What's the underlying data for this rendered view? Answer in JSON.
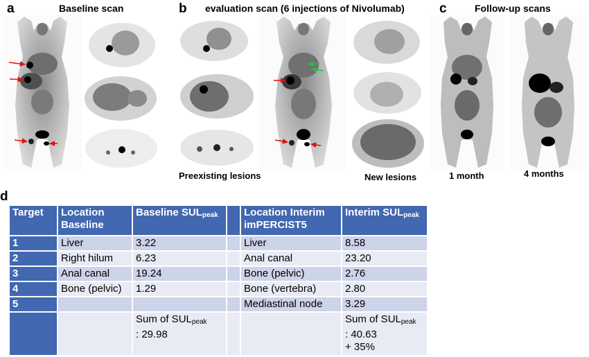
{
  "panels": {
    "a": {
      "letter": "a",
      "title": "Baseline scan"
    },
    "b": {
      "letter": "b",
      "title": "evaluation scan (6 injections of Nivolumab)",
      "caption_left": "Preexisting lesions",
      "caption_right": "New lesions"
    },
    "c": {
      "letter": "c",
      "title": "Follow-up scans",
      "caption_1": "1 month",
      "caption_2": "4 months"
    },
    "d": {
      "letter": "d"
    }
  },
  "table": {
    "headers": {
      "target": "Target",
      "location_baseline_1": "Location",
      "location_baseline_2": "Baseline",
      "baseline_sul_main": "Baseline SUL",
      "baseline_sul_sub": "peak",
      "location_interim_1": "Location Interim",
      "location_interim_2": "imPERCIST5",
      "interim_sul_main": "Interim SUL",
      "interim_sul_sub": "peak"
    },
    "rows": [
      {
        "target": "1",
        "loc_base": "Liver",
        "base_sul": "3.22",
        "loc_interim": "Liver",
        "interim_sul": "8.58"
      },
      {
        "target": "2",
        "loc_base": "Right hilum",
        "base_sul": "6.23",
        "loc_interim": "Anal canal",
        "interim_sul": "23.20"
      },
      {
        "target": "3",
        "loc_base": "Anal canal",
        "base_sul": "19.24",
        "loc_interim": "Bone (pelvic)",
        "interim_sul": "2.76"
      },
      {
        "target": "4",
        "loc_base": "Bone (pelvic)",
        "base_sul": "1.29",
        "loc_interim": "Bone (vertebra)",
        "interim_sul": "2.80"
      },
      {
        "target": "5",
        "loc_base": "",
        "base_sul": "",
        "loc_interim": "Mediastinal node",
        "interim_sul": "3.29"
      }
    ],
    "sum_row": {
      "baseline_label": "Sum of SUL",
      "baseline_sub": "peak",
      "baseline_value": ": 29.98",
      "interim_label": "Sum of SUL",
      "interim_sub": "peak",
      "interim_value": ": 40.63",
      "interim_change": "+ 35%"
    }
  },
  "colors": {
    "header_blue": "#4168b0",
    "row_dark": "#cdd3e8",
    "row_light": "#e8ebf4",
    "arrow_red": "#e01010",
    "arrow_green": "#22c040"
  }
}
